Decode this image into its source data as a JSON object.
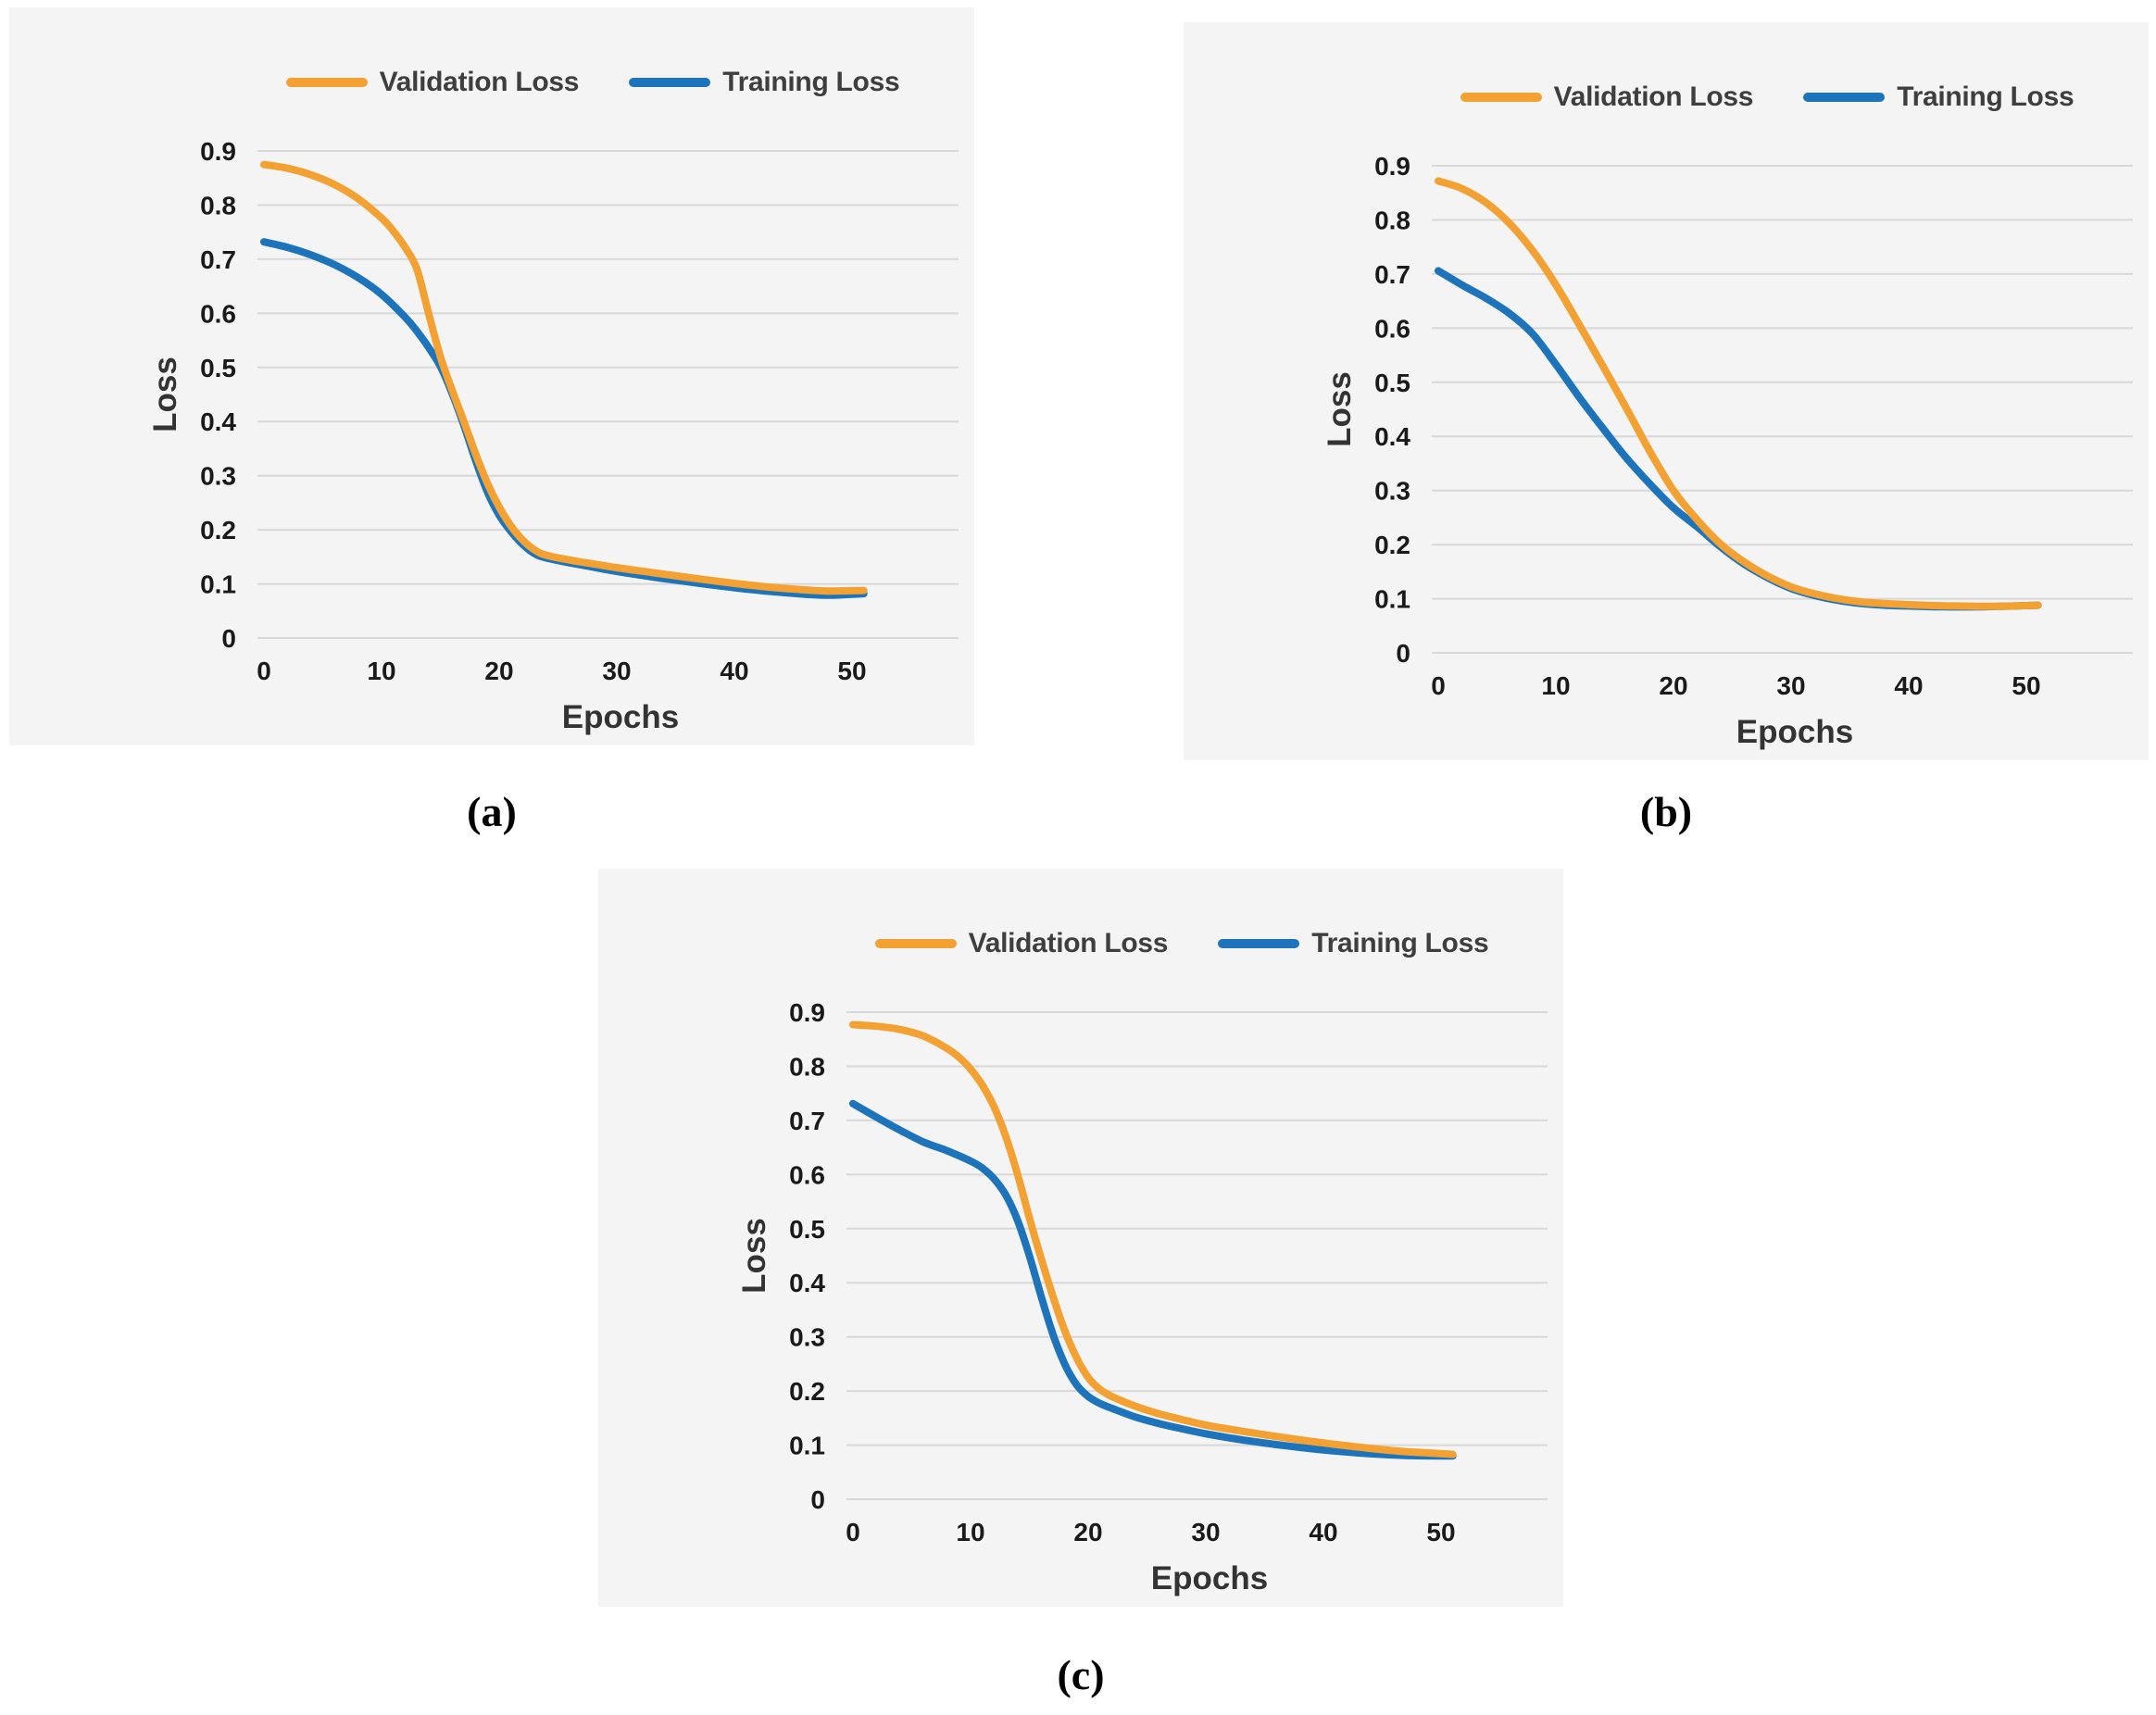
{
  "figure": {
    "background": "#ffffff"
  },
  "colors": {
    "validation": "#F2A132",
    "training": "#1E74BB",
    "gridline": "#D8D8D8",
    "panel_background": "#F4F4F4",
    "tick_text": "#1A1A1A",
    "axis_title_text": "#333333",
    "legend_text": "#3E3E3E",
    "caption_text": "#000000"
  },
  "chart_data": [
    {
      "id": "a",
      "type": "line",
      "caption": "(a)",
      "xlabel": "Epochs",
      "ylabel": "Loss",
      "xlim": [
        0,
        59
      ],
      "ylim": [
        0,
        0.95
      ],
      "grid": "horizontal",
      "legend_position": "top",
      "x_ticks": [
        0,
        10,
        20,
        30,
        40,
        50
      ],
      "y_ticks": [
        "0",
        "0.1",
        "0.2",
        "0.3",
        "0.4",
        "0.5",
        "0.6",
        "0.7",
        "0.8",
        "0.9"
      ],
      "series": [
        {
          "key": "training",
          "name": "Training Loss",
          "color": "training",
          "points": [
            [
              0,
              0.732
            ],
            [
              2,
              0.722
            ],
            [
              4,
              0.708
            ],
            [
              6,
              0.69
            ],
            [
              8,
              0.666
            ],
            [
              10,
              0.635
            ],
            [
              12,
              0.593
            ],
            [
              13,
              0.567
            ],
            [
              14,
              0.537
            ],
            [
              15,
              0.502
            ],
            [
              16,
              0.452
            ],
            [
              17,
              0.393
            ],
            [
              18,
              0.328
            ],
            [
              19,
              0.27
            ],
            [
              20,
              0.227
            ],
            [
              21,
              0.197
            ],
            [
              22,
              0.173
            ],
            [
              23,
              0.156
            ],
            [
              24,
              0.148
            ],
            [
              26,
              0.139
            ],
            [
              28,
              0.131
            ],
            [
              30,
              0.123
            ],
            [
              33,
              0.113
            ],
            [
              36,
              0.104
            ],
            [
              40,
              0.093
            ],
            [
              43,
              0.086
            ],
            [
              46,
              0.081
            ],
            [
              48,
              0.079
            ],
            [
              51,
              0.082
            ]
          ]
        },
        {
          "key": "validation",
          "name": "Validation Loss",
          "color": "validation",
          "points": [
            [
              0,
              0.875
            ],
            [
              2,
              0.868
            ],
            [
              4,
              0.856
            ],
            [
              6,
              0.838
            ],
            [
              8,
              0.812
            ],
            [
              10,
              0.776
            ],
            [
              11,
              0.752
            ],
            [
              12,
              0.722
            ],
            [
              13,
              0.682
            ],
            [
              14,
              0.6
            ],
            [
              15,
              0.52
            ],
            [
              16,
              0.458
            ],
            [
              17,
              0.4
            ],
            [
              18,
              0.34
            ],
            [
              19,
              0.286
            ],
            [
              20,
              0.242
            ],
            [
              21,
              0.207
            ],
            [
              22,
              0.181
            ],
            [
              23,
              0.163
            ],
            [
              24,
              0.153
            ],
            [
              26,
              0.144
            ],
            [
              28,
              0.137
            ],
            [
              30,
              0.13
            ],
            [
              33,
              0.121
            ],
            [
              36,
              0.112
            ],
            [
              40,
              0.101
            ],
            [
              43,
              0.094
            ],
            [
              46,
              0.089
            ],
            [
              48,
              0.087
            ],
            [
              51,
              0.088
            ]
          ]
        }
      ]
    },
    {
      "id": "b",
      "type": "line",
      "caption": "(b)",
      "xlabel": "Epochs",
      "ylabel": "Loss",
      "xlim": [
        0,
        59
      ],
      "ylim": [
        0,
        0.95
      ],
      "grid": "horizontal",
      "legend_position": "top",
      "x_ticks": [
        0,
        10,
        20,
        30,
        40,
        50
      ],
      "y_ticks": [
        "0",
        "0.1",
        "0.2",
        "0.3",
        "0.4",
        "0.5",
        "0.6",
        "0.7",
        "0.8",
        "0.9"
      ],
      "series": [
        {
          "key": "training",
          "name": "Training Loss",
          "color": "training",
          "points": [
            [
              0,
              0.706
            ],
            [
              2,
              0.68
            ],
            [
              4,
              0.656
            ],
            [
              6,
              0.628
            ],
            [
              8,
              0.59
            ],
            [
              10,
              0.533
            ],
            [
              12,
              0.472
            ],
            [
              14,
              0.415
            ],
            [
              16,
              0.36
            ],
            [
              18,
              0.312
            ],
            [
              20,
              0.268
            ],
            [
              22,
              0.233
            ],
            [
              24,
              0.196
            ],
            [
              26,
              0.164
            ],
            [
              28,
              0.139
            ],
            [
              30,
              0.119
            ],
            [
              32,
              0.106
            ],
            [
              34,
              0.097
            ],
            [
              36,
              0.091
            ],
            [
              38,
              0.088
            ],
            [
              40,
              0.0865
            ],
            [
              43,
              0.085
            ],
            [
              46,
              0.085
            ],
            [
              48,
              0.086
            ],
            [
              51,
              0.088
            ]
          ]
        },
        {
          "key": "validation",
          "name": "Validation Loss",
          "color": "validation",
          "points": [
            [
              0,
              0.872
            ],
            [
              2,
              0.858
            ],
            [
              4,
              0.833
            ],
            [
              6,
              0.795
            ],
            [
              8,
              0.744
            ],
            [
              10,
              0.68
            ],
            [
              12,
              0.606
            ],
            [
              14,
              0.53
            ],
            [
              16,
              0.452
            ],
            [
              18,
              0.372
            ],
            [
              20,
              0.3
            ],
            [
              22,
              0.246
            ],
            [
              24,
              0.201
            ],
            [
              26,
              0.168
            ],
            [
              28,
              0.142
            ],
            [
              30,
              0.122
            ],
            [
              32,
              0.109
            ],
            [
              34,
              0.1
            ],
            [
              36,
              0.094
            ],
            [
              38,
              0.091
            ],
            [
              40,
              0.089
            ],
            [
              43,
              0.087
            ],
            [
              46,
              0.086
            ],
            [
              48,
              0.086
            ],
            [
              51,
              0.088
            ]
          ]
        }
      ]
    },
    {
      "id": "c",
      "type": "line",
      "caption": "(c)",
      "xlabel": "Epochs",
      "ylabel": "Loss",
      "xlim": [
        0,
        59
      ],
      "ylim": [
        0,
        0.95
      ],
      "grid": "horizontal",
      "legend_position": "top",
      "x_ticks": [
        0,
        10,
        20,
        30,
        40,
        50
      ],
      "y_ticks": [
        "0",
        "0.1",
        "0.2",
        "0.3",
        "0.4",
        "0.5",
        "0.6",
        "0.7",
        "0.8",
        "0.9"
      ],
      "series": [
        {
          "key": "training",
          "name": "Training Loss",
          "color": "training",
          "points": [
            [
              0,
              0.731
            ],
            [
              2,
              0.706
            ],
            [
              4,
              0.682
            ],
            [
              6,
              0.66
            ],
            [
              8,
              0.644
            ],
            [
              10,
              0.625
            ],
            [
              11,
              0.612
            ],
            [
              12,
              0.592
            ],
            [
              13,
              0.562
            ],
            [
              14,
              0.515
            ],
            [
              15,
              0.45
            ],
            [
              16,
              0.375
            ],
            [
              17,
              0.305
            ],
            [
              18,
              0.25
            ],
            [
              19,
              0.212
            ],
            [
              20,
              0.19
            ],
            [
              21,
              0.177
            ],
            [
              22,
              0.168
            ],
            [
              24,
              0.152
            ],
            [
              26,
              0.14
            ],
            [
              28,
              0.13
            ],
            [
              30,
              0.121
            ],
            [
              33,
              0.11
            ],
            [
              36,
              0.101
            ],
            [
              40,
              0.091
            ],
            [
              44,
              0.084
            ],
            [
              47,
              0.081
            ],
            [
              51,
              0.08
            ]
          ]
        },
        {
          "key": "validation",
          "name": "Validation Loss",
          "color": "validation",
          "points": [
            [
              0,
              0.877
            ],
            [
              2,
              0.874
            ],
            [
              4,
              0.868
            ],
            [
              6,
              0.856
            ],
            [
              8,
              0.833
            ],
            [
              9,
              0.817
            ],
            [
              10,
              0.795
            ],
            [
              11,
              0.765
            ],
            [
              12,
              0.725
            ],
            [
              13,
              0.67
            ],
            [
              14,
              0.6
            ],
            [
              15,
              0.52
            ],
            [
              16,
              0.445
            ],
            [
              17,
              0.375
            ],
            [
              18,
              0.312
            ],
            [
              19,
              0.262
            ],
            [
              20,
              0.225
            ],
            [
              21,
              0.203
            ],
            [
              22,
              0.19
            ],
            [
              24,
              0.172
            ],
            [
              26,
              0.158
            ],
            [
              28,
              0.147
            ],
            [
              30,
              0.137
            ],
            [
              33,
              0.126
            ],
            [
              36,
              0.116
            ],
            [
              40,
              0.104
            ],
            [
              44,
              0.094
            ],
            [
              47,
              0.088
            ],
            [
              51,
              0.083
            ]
          ]
        }
      ]
    }
  ]
}
